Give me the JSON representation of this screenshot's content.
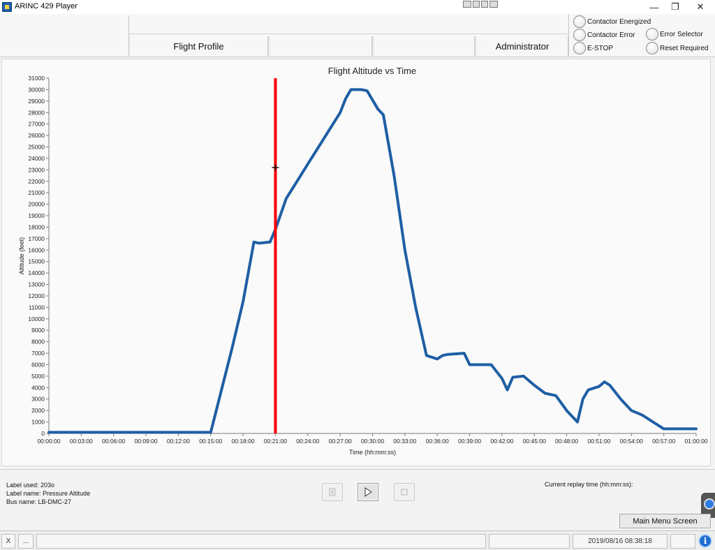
{
  "window": {
    "title": "ARINC 429 Player",
    "minimize_glyph": "—",
    "restore_glyph": "❐",
    "close_glyph": "✕",
    "app_icon": "arinc-app-icon",
    "tool_palette_icon": "labview-tool-palette-icon"
  },
  "tabs": [
    {
      "label": "Flight Profile"
    },
    {
      "label": ""
    },
    {
      "label": ""
    },
    {
      "label": "Administrator"
    }
  ],
  "indicators": [
    {
      "label": "Contactor Energized",
      "state": "off"
    },
    {
      "label": "Contactor Error",
      "state": "off"
    },
    {
      "label": "E-STOP",
      "state": "off"
    },
    {
      "label": "Error Selector",
      "state": "off"
    },
    {
      "label": "Reset Required",
      "state": "off"
    }
  ],
  "plot": {
    "cursor_time": "00:21:00",
    "cursor_color": "#ff0000",
    "line_color": "#1f5fa4"
  },
  "chart_data": {
    "type": "line",
    "title": "Flight Altitude vs Time",
    "xlabel": "Time (hh:mm:ss)",
    "ylabel": "Altitude (feet)",
    "xlim": [
      "00:00:00",
      "01:00:00"
    ],
    "ylim": [
      0,
      31000
    ],
    "x_ticks": [
      "00:00:00",
      "00:03:00",
      "00:06:00",
      "00:09:00",
      "00:12:00",
      "00:15:00",
      "00:18:00",
      "00:21:00",
      "00:24:00",
      "00:27:00",
      "00:30:00",
      "00:33:00",
      "00:36:00",
      "00:39:00",
      "00:42:00",
      "00:45:00",
      "00:48:00",
      "00:51:00",
      "00:54:00",
      "00:57:00",
      "01:00:00"
    ],
    "y_ticks": [
      0,
      1000,
      2000,
      3000,
      4000,
      5000,
      6000,
      7000,
      8000,
      9000,
      10000,
      11000,
      12000,
      13000,
      14000,
      15000,
      16000,
      17000,
      18000,
      19000,
      20000,
      21000,
      22000,
      23000,
      24000,
      25000,
      26000,
      27000,
      28000,
      29000,
      30000,
      31000
    ],
    "grid": false,
    "series": [
      {
        "x": [
          "00:00:00",
          "00:15:00",
          "00:16:00",
          "00:17:00",
          "00:18:00",
          "00:19:00",
          "00:19:30",
          "00:20:30",
          "00:21:00",
          "00:22:00",
          "00:23:00",
          "00:24:00",
          "00:25:00",
          "00:26:00",
          "00:27:00",
          "00:27:30",
          "00:28:00",
          "00:29:00",
          "00:29:30",
          "00:30:30",
          "00:31:00",
          "00:32:00",
          "00:33:00",
          "00:34:00",
          "00:35:00",
          "00:36:00",
          "00:36:30",
          "00:37:00",
          "00:38:30",
          "00:39:00",
          "00:41:00",
          "00:42:00",
          "00:42:30",
          "00:43:00",
          "00:44:00",
          "00:45:00",
          "00:46:00",
          "00:47:00",
          "00:48:00",
          "00:49:00",
          "00:49:30",
          "00:50:00",
          "00:51:00",
          "00:51:30",
          "00:52:00",
          "00:53:00",
          "00:54:00",
          "00:55:00",
          "00:56:00",
          "00:57:00",
          "01:00:00"
        ],
        "values": [
          100,
          100,
          3800,
          7500,
          11500,
          16700,
          16600,
          16700,
          17800,
          20500,
          22000,
          23500,
          25000,
          26500,
          28000,
          29200,
          30000,
          30000,
          29900,
          28300,
          27800,
          22500,
          16000,
          11000,
          6800,
          6500,
          6800,
          6900,
          7000,
          6000,
          6000,
          4800,
          3800,
          4900,
          5000,
          4200,
          3500,
          3300,
          2000,
          1000,
          3000,
          3800,
          4100,
          4500,
          4200,
          3000,
          2000,
          1600,
          1000,
          400,
          400
        ]
      }
    ]
  },
  "footer": {
    "label_used": "Label used: 203o",
    "label_name": "Label name: Pressure Altitude",
    "bus_name": "Bus name: LB-DMC-27",
    "replay_time_label": "Current replay time (hh:mm:ss):",
    "replay_time_value": "",
    "main_menu_label": "Main Menu Screen"
  },
  "statusbar": {
    "close_label": "X",
    "more_label": "...",
    "datetime": "2019/08/16 08:38:18",
    "info_glyph": "i"
  }
}
